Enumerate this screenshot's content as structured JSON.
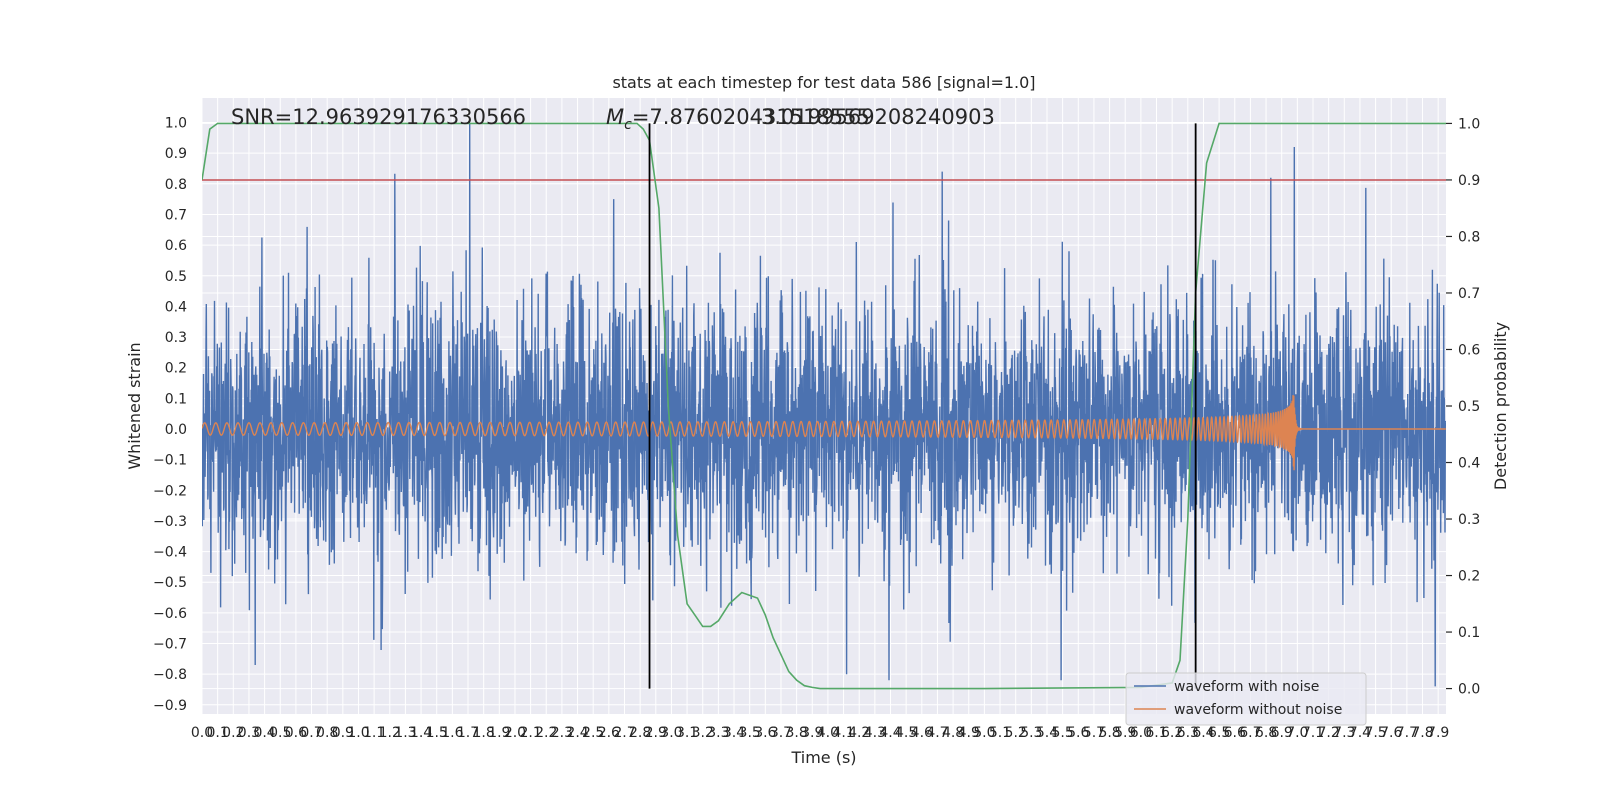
{
  "chart_data": {
    "type": "line",
    "title": "stats at each timestep for test data 586 [signal=1.0]",
    "xlabel": "Time (s)",
    "ylabel": "Whitened strain",
    "y2label": "Detection probability",
    "xlim": [
      0.0,
      7.95
    ],
    "ylim": [
      -0.93,
      1.08
    ],
    "y2lim": [
      -0.045,
      1.045
    ],
    "x_ticks": [
      0.0,
      0.1,
      0.2,
      0.3,
      0.4,
      0.5,
      0.6,
      0.7,
      0.8,
      0.9,
      1.0,
      1.1,
      1.2,
      1.3,
      1.4,
      1.5,
      1.6,
      1.7,
      1.8,
      1.9,
      2.0,
      2.1,
      2.2,
      2.3,
      2.4,
      2.5,
      2.6,
      2.7,
      2.8,
      2.9,
      3.0,
      3.1,
      3.2,
      3.3,
      3.4,
      3.5,
      3.6,
      3.7,
      3.8,
      3.9,
      4.0,
      4.1,
      4.2,
      4.3,
      4.4,
      4.5,
      4.6,
      4.7,
      4.8,
      4.9,
      5.0,
      5.1,
      5.2,
      5.3,
      5.4,
      5.5,
      5.6,
      5.7,
      5.8,
      5.9,
      6.0,
      6.1,
      6.2,
      6.3,
      6.4,
      6.5,
      6.6,
      6.7,
      6.8,
      6.9,
      7.0,
      7.1,
      7.2,
      7.3,
      7.4,
      7.5,
      7.6,
      7.7,
      7.8,
      7.9
    ],
    "x_tick_labels": [
      "0.0",
      "0.1",
      "0.2",
      "0.3",
      "0.4",
      "0.5",
      "0.6",
      "0.7",
      "0.8",
      "0.9",
      "1.0",
      "1.1",
      "1.2",
      "1.3",
      "1.4",
      "1.5",
      "1.6",
      "1.7",
      "1.8",
      "1.9",
      "2.0",
      "2.1",
      "2.2",
      "2.3",
      "2.4",
      "2.5",
      "2.6",
      "2.7",
      "2.8",
      "2.9",
      "3.0",
      "3.1",
      "3.2",
      "3.3",
      "3.4",
      "3.5",
      "3.6",
      "3.7",
      "3.8",
      "3.9",
      "4.0",
      "4.1",
      "4.2",
      "4.3",
      "4.4",
      "4.5",
      "4.6",
      "4.7",
      "4.8",
      "4.9",
      "5.0",
      "5.1",
      "5.2",
      "5.3",
      "5.4",
      "5.5",
      "5.6",
      "5.7",
      "5.8",
      "5.9",
      "6.0",
      "6.1",
      "6.2",
      "6.3",
      "6.4",
      "6.5",
      "6.6",
      "6.7",
      "6.8",
      "6.9",
      "7.0",
      "7.1",
      "7.2",
      "7.3",
      "7.4",
      "7.5",
      "7.6",
      "7.7",
      "7.8",
      "7.9"
    ],
    "y_ticks": [
      -0.9,
      -0.8,
      -0.7,
      -0.6,
      -0.5,
      -0.4,
      -0.3,
      -0.2,
      -0.1,
      0.0,
      0.1,
      0.2,
      0.3,
      0.4,
      0.5,
      0.6,
      0.7,
      0.8,
      0.9,
      1.0
    ],
    "y_tick_labels": [
      "−0.9",
      "−0.8",
      "−0.7",
      "−0.6",
      "−0.5",
      "−0.4",
      "−0.3",
      "−0.2",
      "−0.1",
      "0.0",
      "0.1",
      "0.2",
      "0.3",
      "0.4",
      "0.5",
      "0.6",
      "0.7",
      "0.8",
      "0.9",
      "1.0"
    ],
    "y2_ticks": [
      0.0,
      0.1,
      0.2,
      0.3,
      0.4,
      0.5,
      0.6,
      0.7,
      0.8,
      0.9,
      1.0
    ],
    "y2_tick_labels": [
      "0.0",
      "0.1",
      "0.2",
      "0.3",
      "0.4",
      "0.5",
      "0.6",
      "0.7",
      "0.8",
      "0.9",
      "1.0"
    ],
    "annotations": [
      {
        "text": "SNR=12.963929176330566",
        "x": 0.2,
        "y": 1.02
      },
      {
        "text": "$M_c$=7.876020431518555",
        "x": 2.6,
        "y": 1.02,
        "mc_symbol": "M",
        "mc_subscript": "c",
        "mc_rest": "=7.876020431518555"
      },
      {
        "text": "3.0199569208240903",
        "x": 3.6,
        "y": 1.02
      }
    ],
    "threshold": {
      "y2": 0.9,
      "color": "#c44e52"
    },
    "vertical_lines": [
      {
        "x": 2.86
      },
      {
        "x": 6.35
      }
    ],
    "series": [
      {
        "name": "waveform with noise",
        "color": "#4c72b0",
        "noise_std": 0.21,
        "sample_rate": 512,
        "peaks": [
          {
            "x": 1.71,
            "y": 1.0
          },
          {
            "x": 4.73,
            "y": 0.84
          },
          {
            "x": 6.83,
            "y": 0.82
          },
          {
            "x": 6.98,
            "y": 0.92
          },
          {
            "x": 2.63,
            "y": 0.75
          },
          {
            "x": 0.34,
            "y": -0.77
          },
          {
            "x": 5.49,
            "y": -0.82
          },
          {
            "x": 7.88,
            "y": -0.84
          },
          {
            "x": 4.12,
            "y": -0.8
          },
          {
            "x": 4.39,
            "y": -0.82
          }
        ]
      },
      {
        "name": "waveform without noise",
        "color": "#dd8452",
        "merger_time": 6.98,
        "amplitude_start": 0.02,
        "amplitude_peak": 0.4,
        "amplitude_min": -0.33,
        "f_start": 14,
        "post_merger_level": 0.0
      },
      {
        "name": "detection probability",
        "color": "#55a868",
        "axis": "y2",
        "x": [
          0.0,
          0.05,
          0.1,
          0.2,
          0.5,
          1.0,
          2.0,
          2.5,
          2.7,
          2.78,
          2.82,
          2.86,
          2.92,
          2.98,
          3.04,
          3.1,
          3.15,
          3.2,
          3.25,
          3.3,
          3.37,
          3.45,
          3.55,
          3.6,
          3.65,
          3.7,
          3.75,
          3.8,
          3.85,
          3.9,
          3.95,
          4.0,
          4.1,
          4.5,
          5.0,
          6.0,
          6.2,
          6.25,
          6.3,
          6.35,
          6.42,
          6.5,
          6.58,
          6.7,
          7.0,
          7.5,
          7.95
        ],
        "y": [
          0.9,
          0.99,
          1.0,
          1.0,
          1.0,
          1.0,
          1.0,
          1.0,
          1.0,
          1.0,
          0.99,
          0.97,
          0.85,
          0.5,
          0.27,
          0.15,
          0.13,
          0.11,
          0.11,
          0.12,
          0.15,
          0.17,
          0.16,
          0.13,
          0.09,
          0.06,
          0.03,
          0.015,
          0.005,
          0.002,
          0.0,
          0.0,
          0.0,
          0.0,
          0.0,
          0.002,
          0.01,
          0.05,
          0.3,
          0.7,
          0.93,
          1.0,
          1.0,
          1.0,
          1.0,
          1.0,
          1.0
        ]
      }
    ],
    "legend": {
      "placement": "lower-right",
      "entries": [
        {
          "label": "waveform with noise",
          "color": "#4c72b0"
        },
        {
          "label": "waveform without noise",
          "color": "#dd8452"
        }
      ]
    },
    "style": {
      "background": "#eaeaf2",
      "grid": true,
      "grid_color": "#ffffff",
      "figure_background": "#ffffff"
    }
  }
}
